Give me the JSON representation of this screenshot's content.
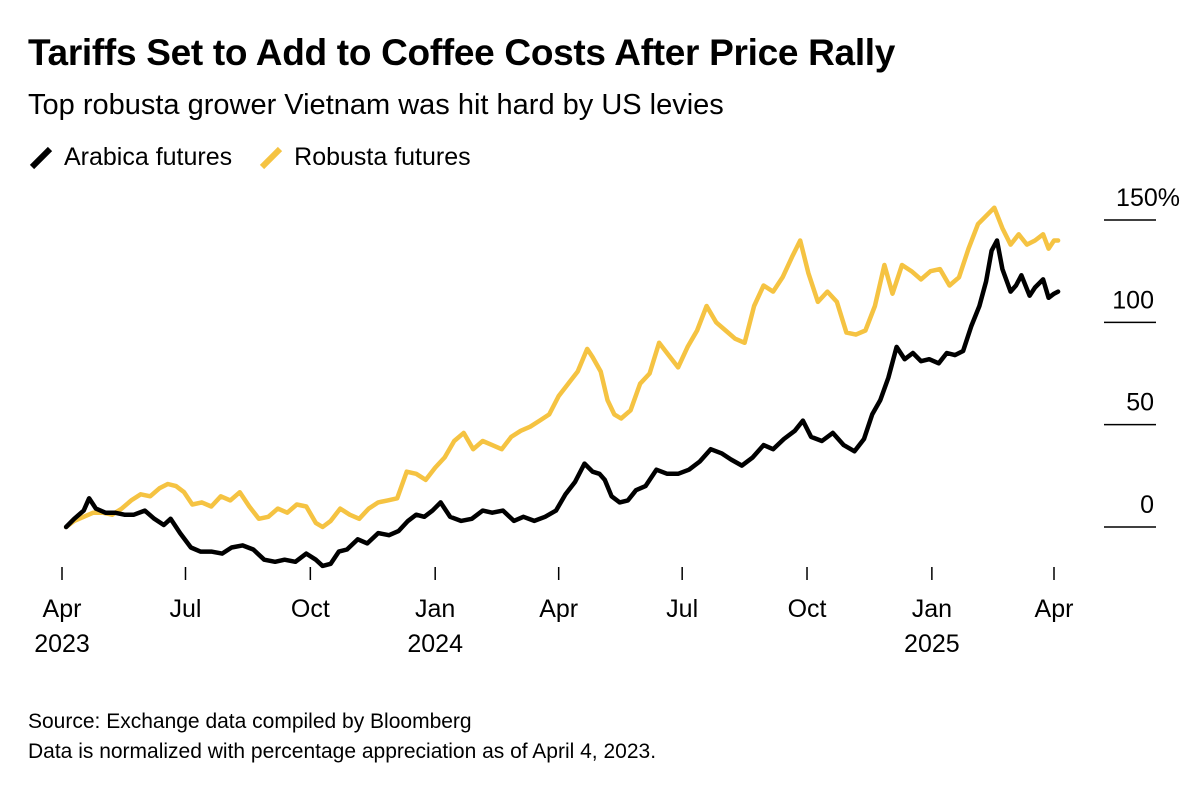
{
  "header": {
    "title": "Tariffs Set to Add to Coffee Costs After Price Rally",
    "subtitle": "Top robusta grower Vietnam was hit hard by US levies"
  },
  "footer": {
    "source": "Source: Exchange data compiled by Bloomberg",
    "note": "Data is normalized with percentage appreciation as of April 4, 2023."
  },
  "colors": {
    "arabica": "#000000",
    "robusta": "#f5c342"
  },
  "chart_data": {
    "type": "line",
    "title": "Tariffs Set to Add to Coffee Costs After Price Rally",
    "subtitle": "Top robusta grower Vietnam was hit hard by US levies",
    "xlabel": "",
    "ylabel": "",
    "x_range": [
      "2023-04-01",
      "2025-04-15"
    ],
    "ylim": [
      -20,
      160
    ],
    "y_ticks": [
      {
        "value": 0,
        "label": "0"
      },
      {
        "value": 50,
        "label": "50"
      },
      {
        "value": 100,
        "label": "100"
      },
      {
        "value": 150,
        "label": "150%"
      }
    ],
    "x_ticks": [
      {
        "date": "2023-04-01",
        "label": "Apr",
        "year": "2023"
      },
      {
        "date": "2023-07-01",
        "label": "Jul",
        "year": ""
      },
      {
        "date": "2023-10-01",
        "label": "Oct",
        "year": ""
      },
      {
        "date": "2024-01-01",
        "label": "Jan",
        "year": "2024"
      },
      {
        "date": "2024-04-01",
        "label": "Apr",
        "year": ""
      },
      {
        "date": "2024-07-01",
        "label": "Jul",
        "year": ""
      },
      {
        "date": "2024-10-01",
        "label": "Oct",
        "year": ""
      },
      {
        "date": "2025-01-01",
        "label": "Jan",
        "year": "2025"
      },
      {
        "date": "2025-04-01",
        "label": "Apr",
        "year": ""
      }
    ],
    "grid": false,
    "legend_position": "top-left",
    "series": [
      {
        "name": "Arabica futures",
        "color": "#000000",
        "points": [
          [
            "2023-04-04",
            0
          ],
          [
            "2023-04-10",
            4
          ],
          [
            "2023-04-17",
            8
          ],
          [
            "2023-04-21",
            14
          ],
          [
            "2023-04-26",
            9
          ],
          [
            "2023-05-03",
            7
          ],
          [
            "2023-05-10",
            7
          ],
          [
            "2023-05-17",
            6
          ],
          [
            "2023-05-24",
            6
          ],
          [
            "2023-06-01",
            8
          ],
          [
            "2023-06-08",
            4
          ],
          [
            "2023-06-15",
            1
          ],
          [
            "2023-06-20",
            4
          ],
          [
            "2023-06-27",
            -3
          ],
          [
            "2023-07-05",
            -10
          ],
          [
            "2023-07-12",
            -12
          ],
          [
            "2023-07-20",
            -12
          ],
          [
            "2023-07-28",
            -13
          ],
          [
            "2023-08-04",
            -10
          ],
          [
            "2023-08-12",
            -9
          ],
          [
            "2023-08-20",
            -11
          ],
          [
            "2023-08-28",
            -16
          ],
          [
            "2023-09-05",
            -17
          ],
          [
            "2023-09-12",
            -16
          ],
          [
            "2023-09-20",
            -17
          ],
          [
            "2023-09-28",
            -13
          ],
          [
            "2023-10-05",
            -16
          ],
          [
            "2023-10-10",
            -19
          ],
          [
            "2023-10-16",
            -18
          ],
          [
            "2023-10-22",
            -12
          ],
          [
            "2023-10-28",
            -11
          ],
          [
            "2023-11-05",
            -6
          ],
          [
            "2023-11-12",
            -8
          ],
          [
            "2023-11-20",
            -3
          ],
          [
            "2023-11-28",
            -4
          ],
          [
            "2023-12-05",
            -2
          ],
          [
            "2023-12-12",
            3
          ],
          [
            "2023-12-18",
            6
          ],
          [
            "2023-12-24",
            5
          ],
          [
            "2023-12-30",
            8
          ],
          [
            "2024-01-05",
            12
          ],
          [
            "2024-01-12",
            5
          ],
          [
            "2024-01-20",
            3
          ],
          [
            "2024-01-28",
            4
          ],
          [
            "2024-02-05",
            8
          ],
          [
            "2024-02-12",
            7
          ],
          [
            "2024-02-20",
            8
          ],
          [
            "2024-02-28",
            3
          ],
          [
            "2024-03-06",
            5
          ],
          [
            "2024-03-14",
            3
          ],
          [
            "2024-03-22",
            5
          ],
          [
            "2024-03-30",
            8
          ],
          [
            "2024-04-06",
            16
          ],
          [
            "2024-04-13",
            22
          ],
          [
            "2024-04-20",
            31
          ],
          [
            "2024-04-26",
            27
          ],
          [
            "2024-05-01",
            26
          ],
          [
            "2024-05-05",
            23
          ],
          [
            "2024-05-10",
            15
          ],
          [
            "2024-05-16",
            12
          ],
          [
            "2024-05-22",
            13
          ],
          [
            "2024-05-28",
            18
          ],
          [
            "2024-06-04",
            20
          ],
          [
            "2024-06-12",
            28
          ],
          [
            "2024-06-20",
            26
          ],
          [
            "2024-06-28",
            26
          ],
          [
            "2024-07-06",
            28
          ],
          [
            "2024-07-14",
            32
          ],
          [
            "2024-07-22",
            38
          ],
          [
            "2024-07-30",
            36
          ],
          [
            "2024-08-06",
            33
          ],
          [
            "2024-08-14",
            30
          ],
          [
            "2024-08-22",
            34
          ],
          [
            "2024-08-30",
            40
          ],
          [
            "2024-09-06",
            38
          ],
          [
            "2024-09-14",
            43
          ],
          [
            "2024-09-22",
            47
          ],
          [
            "2024-09-28",
            52
          ],
          [
            "2024-10-04",
            44
          ],
          [
            "2024-10-12",
            42
          ],
          [
            "2024-10-20",
            46
          ],
          [
            "2024-10-28",
            40
          ],
          [
            "2024-11-05",
            37
          ],
          [
            "2024-11-12",
            43
          ],
          [
            "2024-11-18",
            55
          ],
          [
            "2024-11-24",
            62
          ],
          [
            "2024-11-30",
            73
          ],
          [
            "2024-12-06",
            88
          ],
          [
            "2024-12-12",
            82
          ],
          [
            "2024-12-18",
            85
          ],
          [
            "2024-12-24",
            81
          ],
          [
            "2024-12-30",
            82
          ],
          [
            "2025-01-06",
            80
          ],
          [
            "2025-01-12",
            85
          ],
          [
            "2025-01-18",
            84
          ],
          [
            "2025-01-24",
            86
          ],
          [
            "2025-01-30",
            98
          ],
          [
            "2025-02-05",
            108
          ],
          [
            "2025-02-10",
            120
          ],
          [
            "2025-02-14",
            135
          ],
          [
            "2025-02-18",
            140
          ],
          [
            "2025-02-22",
            126
          ],
          [
            "2025-02-28",
            115
          ],
          [
            "2025-03-04",
            118
          ],
          [
            "2025-03-08",
            123
          ],
          [
            "2025-03-14",
            113
          ],
          [
            "2025-03-18",
            117
          ],
          [
            "2025-03-24",
            121
          ],
          [
            "2025-03-28",
            112
          ],
          [
            "2025-04-01",
            114
          ],
          [
            "2025-04-04",
            115
          ]
        ]
      },
      {
        "name": "Robusta futures",
        "color": "#f5c342",
        "points": [
          [
            "2023-04-04",
            0
          ],
          [
            "2023-04-10",
            3
          ],
          [
            "2023-04-17",
            5
          ],
          [
            "2023-04-24",
            7
          ],
          [
            "2023-05-01",
            7
          ],
          [
            "2023-05-08",
            6
          ],
          [
            "2023-05-15",
            9
          ],
          [
            "2023-05-22",
            13
          ],
          [
            "2023-05-29",
            16
          ],
          [
            "2023-06-05",
            15
          ],
          [
            "2023-06-12",
            19
          ],
          [
            "2023-06-18",
            21
          ],
          [
            "2023-06-24",
            20
          ],
          [
            "2023-06-30",
            17
          ],
          [
            "2023-07-06",
            11
          ],
          [
            "2023-07-13",
            12
          ],
          [
            "2023-07-20",
            10
          ],
          [
            "2023-07-27",
            15
          ],
          [
            "2023-08-03",
            13
          ],
          [
            "2023-08-10",
            17
          ],
          [
            "2023-08-17",
            10
          ],
          [
            "2023-08-24",
            4
          ],
          [
            "2023-08-31",
            5
          ],
          [
            "2023-09-07",
            9
          ],
          [
            "2023-09-14",
            7
          ],
          [
            "2023-09-21",
            11
          ],
          [
            "2023-09-28",
            10
          ],
          [
            "2023-10-05",
            2
          ],
          [
            "2023-10-10",
            0
          ],
          [
            "2023-10-16",
            3
          ],
          [
            "2023-10-23",
            9
          ],
          [
            "2023-10-30",
            6
          ],
          [
            "2023-11-06",
            4
          ],
          [
            "2023-11-13",
            9
          ],
          [
            "2023-11-20",
            12
          ],
          [
            "2023-11-27",
            13
          ],
          [
            "2023-12-04",
            14
          ],
          [
            "2023-12-11",
            27
          ],
          [
            "2023-12-18",
            26
          ],
          [
            "2023-12-25",
            23
          ],
          [
            "2024-01-01",
            29
          ],
          [
            "2024-01-08",
            34
          ],
          [
            "2024-01-15",
            42
          ],
          [
            "2024-01-22",
            46
          ],
          [
            "2024-01-29",
            38
          ],
          [
            "2024-02-05",
            42
          ],
          [
            "2024-02-12",
            40
          ],
          [
            "2024-02-19",
            38
          ],
          [
            "2024-02-26",
            44
          ],
          [
            "2024-03-04",
            47
          ],
          [
            "2024-03-11",
            49
          ],
          [
            "2024-03-18",
            52
          ],
          [
            "2024-03-25",
            55
          ],
          [
            "2024-04-01",
            64
          ],
          [
            "2024-04-08",
            70
          ],
          [
            "2024-04-15",
            76
          ],
          [
            "2024-04-22",
            87
          ],
          [
            "2024-04-26",
            83
          ],
          [
            "2024-05-02",
            76
          ],
          [
            "2024-05-07",
            62
          ],
          [
            "2024-05-12",
            55
          ],
          [
            "2024-05-17",
            53
          ],
          [
            "2024-05-24",
            57
          ],
          [
            "2024-05-31",
            70
          ],
          [
            "2024-06-07",
            75
          ],
          [
            "2024-06-14",
            90
          ],
          [
            "2024-06-21",
            84
          ],
          [
            "2024-06-28",
            78
          ],
          [
            "2024-07-05",
            88
          ],
          [
            "2024-07-12",
            96
          ],
          [
            "2024-07-19",
            108
          ],
          [
            "2024-07-26",
            100
          ],
          [
            "2024-08-02",
            96
          ],
          [
            "2024-08-09",
            92
          ],
          [
            "2024-08-16",
            90
          ],
          [
            "2024-08-23",
            108
          ],
          [
            "2024-08-30",
            118
          ],
          [
            "2024-09-06",
            115
          ],
          [
            "2024-09-13",
            122
          ],
          [
            "2024-09-20",
            132
          ],
          [
            "2024-09-26",
            140
          ],
          [
            "2024-10-02",
            124
          ],
          [
            "2024-10-09",
            110
          ],
          [
            "2024-10-16",
            115
          ],
          [
            "2024-10-23",
            110
          ],
          [
            "2024-10-30",
            95
          ],
          [
            "2024-11-06",
            94
          ],
          [
            "2024-11-13",
            96
          ],
          [
            "2024-11-20",
            108
          ],
          [
            "2024-11-27",
            128
          ],
          [
            "2024-12-03",
            114
          ],
          [
            "2024-12-10",
            128
          ],
          [
            "2024-12-17",
            125
          ],
          [
            "2024-12-24",
            121
          ],
          [
            "2024-12-31",
            125
          ],
          [
            "2025-01-07",
            126
          ],
          [
            "2025-01-14",
            118
          ],
          [
            "2025-01-21",
            122
          ],
          [
            "2025-01-28",
            136
          ],
          [
            "2025-02-04",
            148
          ],
          [
            "2025-02-10",
            152
          ],
          [
            "2025-02-16",
            156
          ],
          [
            "2025-02-22",
            146
          ],
          [
            "2025-02-28",
            138
          ],
          [
            "2025-03-06",
            143
          ],
          [
            "2025-03-12",
            138
          ],
          [
            "2025-03-18",
            140
          ],
          [
            "2025-03-24",
            143
          ],
          [
            "2025-03-28",
            136
          ],
          [
            "2025-04-01",
            140
          ],
          [
            "2025-04-04",
            140
          ]
        ]
      }
    ]
  }
}
